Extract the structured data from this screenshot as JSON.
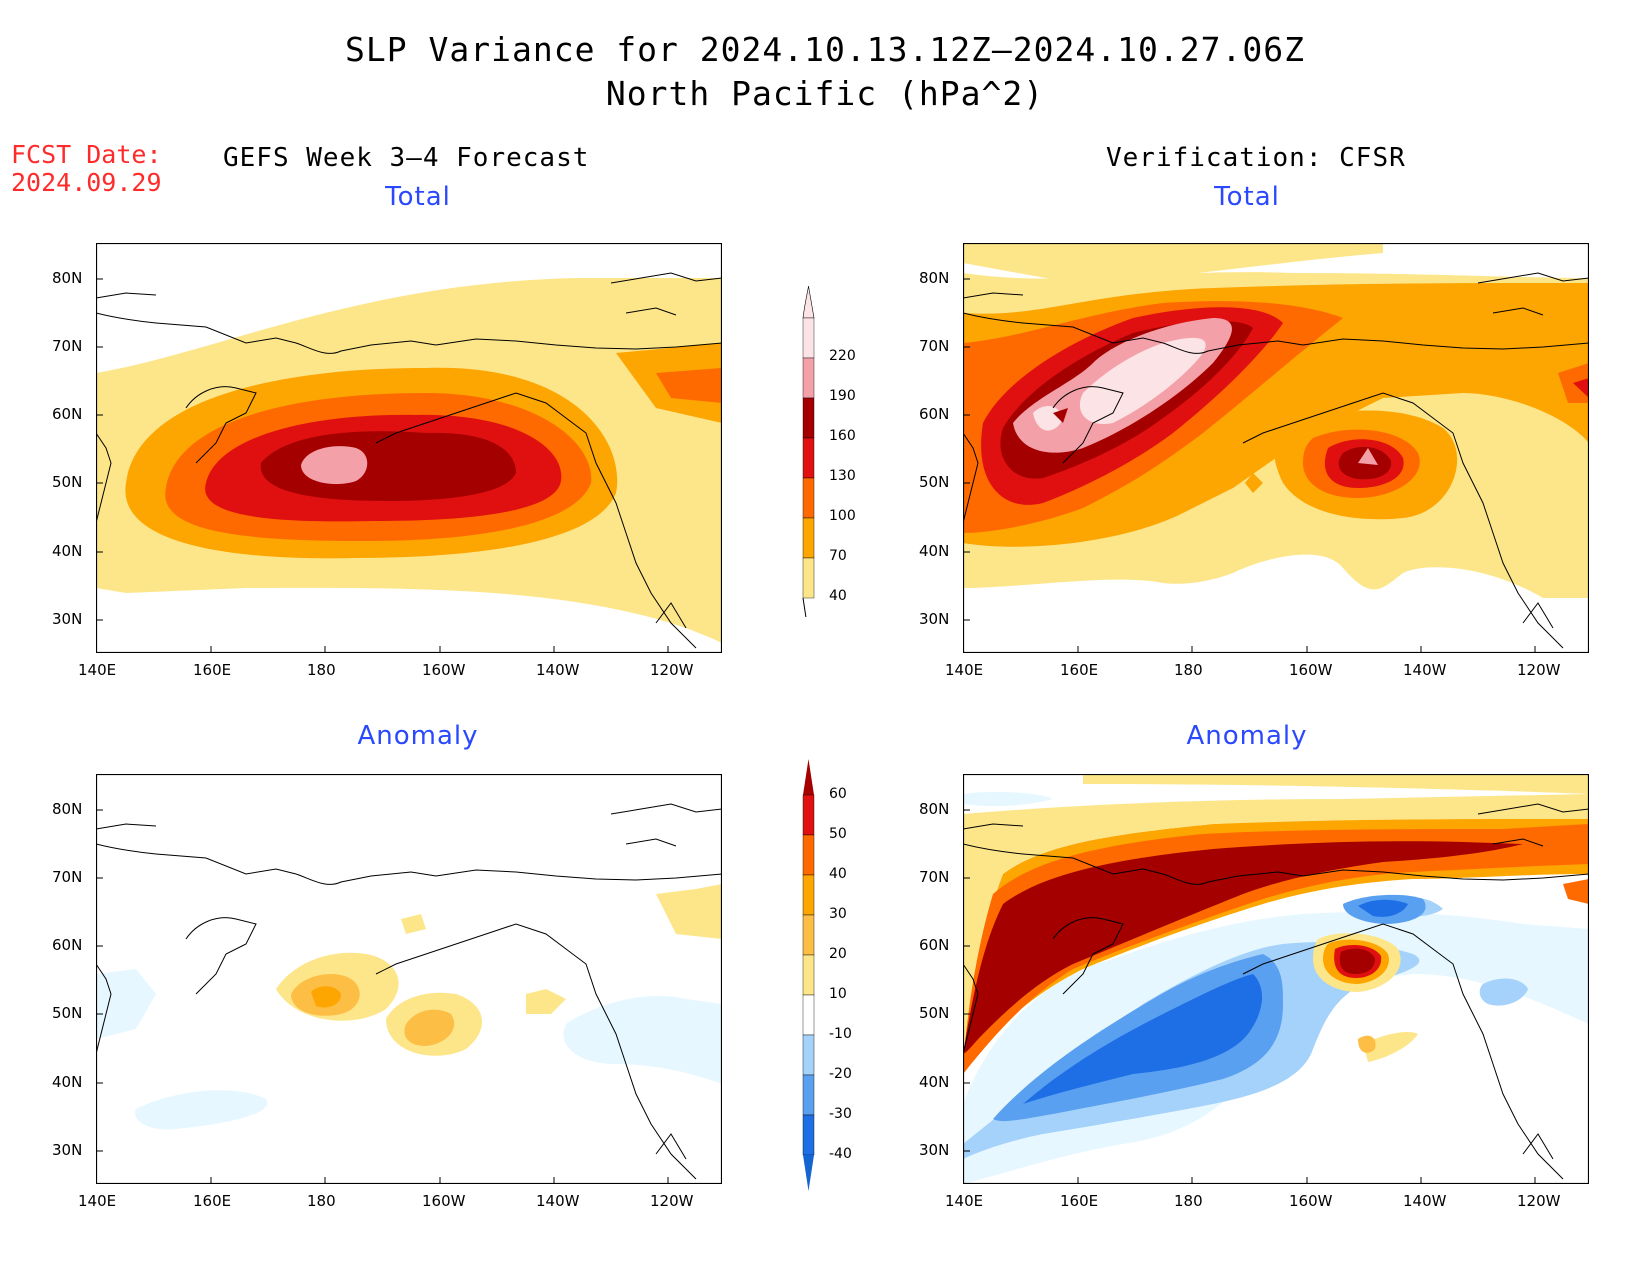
{
  "title": {
    "main": "SLP Variance for 2024.10.13.12Z–2024.10.27.06Z",
    "sub": "North Pacific (hPa^2)"
  },
  "forecast": {
    "label": "FCST Date:",
    "date": "2024.09.29"
  },
  "columns": {
    "left": "GEFS Week 3–4 Forecast",
    "right": "Verification: CFSR"
  },
  "panels": {
    "fcst_total": "Total",
    "cfsr_total": "Total",
    "fcst_anomaly": "Anomaly",
    "cfsr_anomaly": "Anomaly"
  },
  "axes": {
    "x_ticks": [
      "140E",
      "160E",
      "180",
      "160W",
      "140W",
      "120W"
    ],
    "y_ticks": [
      "80N",
      "70N",
      "60N",
      "50N",
      "40N",
      "30N"
    ]
  },
  "total_colorbar": {
    "levels": [
      "40",
      "70",
      "100",
      "130",
      "160",
      "190",
      "220"
    ],
    "colors": [
      "#fde68a",
      "#fda500",
      "#ff6a00",
      "#e01010",
      "#a50000",
      "#f4a0a8",
      "#fce4e6"
    ]
  },
  "anomaly_colorbar": {
    "levels": [
      "-40",
      "-30",
      "-20",
      "-10",
      "10",
      "20",
      "30",
      "40",
      "50",
      "60"
    ],
    "colors": [
      "#1464d2",
      "#1e6ee6",
      "#5aa0f0",
      "#a5d2fa",
      "#e6f7ff",
      "#ffffff",
      "#fde68a",
      "#fdbe46",
      "#fda500",
      "#ff6a00",
      "#e01010",
      "#a50000"
    ]
  }
}
